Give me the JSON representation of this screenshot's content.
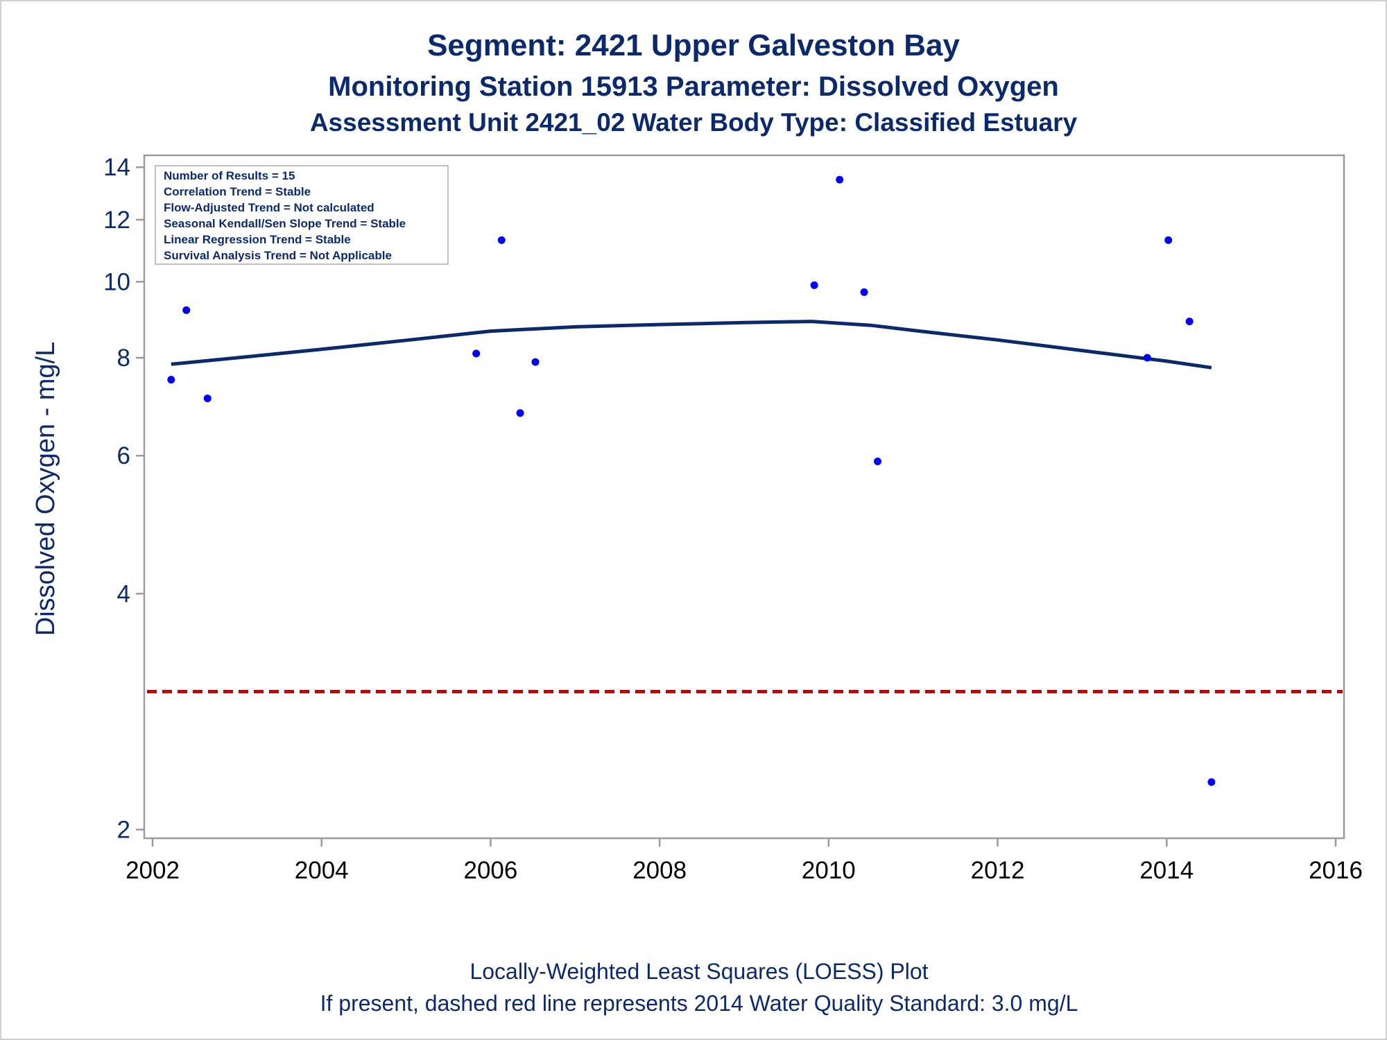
{
  "titles": {
    "line1": "Segment: 2421  Upper Galveston Bay",
    "line2": "Monitoring Station 15913 Parameter: Dissolved Oxygen",
    "line3": "Assessment Unit 2421_02   Water Body Type: Classified Estuary"
  },
  "stats": [
    "Number of Results = 15",
    "Correlation Trend = Stable",
    "Flow-Adjusted Trend = Not calculated",
    "Seasonal Kendall/Sen Slope Trend = Stable",
    "Linear Regression Trend = Stable",
    "Survival Analysis Trend = Not Applicable"
  ],
  "footnotes": {
    "line1": "Locally-Weighted Least Squares (LOESS) Plot",
    "line2": "If present, dashed red line represents 2014 Water Quality Standard: 3.0 mg/L"
  },
  "colors": {
    "points": "#0000ff",
    "loess": "#0b2a6e",
    "standard": "#cc0000",
    "text": "#0b2a6e"
  },
  "chart_data": {
    "type": "scatter",
    "ylabel": "Dissolved Oxygen - mg/L",
    "xlabel": "",
    "xlim": [
      2002,
      2016
    ],
    "ylim": [
      1.95,
      14.5
    ],
    "yscale": "log",
    "x_ticks": [
      "2002",
      "2004",
      "2006",
      "2008",
      "2010",
      "2012",
      "2014",
      "2016"
    ],
    "y_ticks": [
      "2",
      "4",
      "6",
      "8",
      "10",
      "12",
      "14"
    ],
    "grid": false,
    "points": [
      {
        "x": 2002.22,
        "y": 7.5
      },
      {
        "x": 2002.4,
        "y": 9.2
      },
      {
        "x": 2002.65,
        "y": 7.1
      },
      {
        "x": 2005.83,
        "y": 8.1
      },
      {
        "x": 2006.13,
        "y": 11.3
      },
      {
        "x": 2006.35,
        "y": 6.8
      },
      {
        "x": 2006.53,
        "y": 7.9
      },
      {
        "x": 2009.83,
        "y": 9.9
      },
      {
        "x": 2010.13,
        "y": 13.5
      },
      {
        "x": 2010.42,
        "y": 9.7
      },
      {
        "x": 2010.58,
        "y": 5.9
      },
      {
        "x": 2013.77,
        "y": 8.0
      },
      {
        "x": 2014.02,
        "y": 11.3
      },
      {
        "x": 2014.27,
        "y": 8.9
      },
      {
        "x": 2014.53,
        "y": 2.3
      }
    ],
    "loess": [
      {
        "x": 2002.22,
        "y": 7.85
      },
      {
        "x": 2003.0,
        "y": 8.0
      },
      {
        "x": 2004.0,
        "y": 8.2
      },
      {
        "x": 2005.0,
        "y": 8.42
      },
      {
        "x": 2006.0,
        "y": 8.65
      },
      {
        "x": 2007.0,
        "y": 8.76
      },
      {
        "x": 2008.0,
        "y": 8.82
      },
      {
        "x": 2009.0,
        "y": 8.87
      },
      {
        "x": 2009.8,
        "y": 8.9
      },
      {
        "x": 2010.5,
        "y": 8.8
      },
      {
        "x": 2011.0,
        "y": 8.67
      },
      {
        "x": 2012.0,
        "y": 8.43
      },
      {
        "x": 2013.0,
        "y": 8.17
      },
      {
        "x": 2014.0,
        "y": 7.92
      },
      {
        "x": 2014.53,
        "y": 7.77
      }
    ],
    "reference_line": {
      "y": 3.0,
      "style": "dashed"
    }
  }
}
